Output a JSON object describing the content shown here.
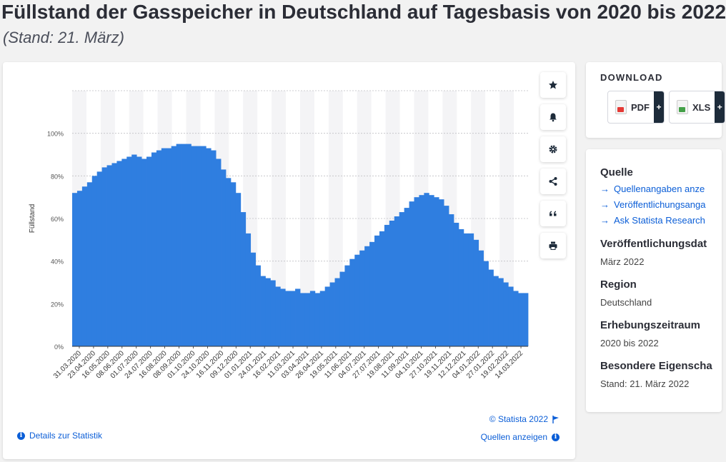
{
  "title": "Füllstand der Gasspeicher in Deutschland auf Tagesbasis von 2020 bis 2022",
  "subtitle": "(Stand: 21. März)",
  "toolbar": {
    "icons": [
      "star-icon",
      "bell-icon",
      "gear-icon",
      "share-icon",
      "quote-icon",
      "print-icon"
    ]
  },
  "footer": {
    "copyright": "© Statista 2022",
    "details_label": "Details zur Statistik",
    "sources_label": "Quellen anzeigen"
  },
  "download": {
    "heading": "DOWNLOAD",
    "pdf_label": "PDF",
    "xls_label": "XLS",
    "plus": "+"
  },
  "info": {
    "source_heading": "Quelle",
    "source_links": [
      "Quellenangaben anze",
      "Veröffentlichungsanga",
      "Ask Statista Research"
    ],
    "published_heading": "Veröffentlichungsdat",
    "published_value": "März 2022",
    "region_heading": "Region",
    "region_value": "Deutschland",
    "period_heading": "Erhebungszeitraum",
    "period_value": "2020 bis 2022",
    "special_heading": "Besondere Eigenscha",
    "special_value": "Stand: 21. März 2022"
  },
  "colors": {
    "bar": "#2f7ee0",
    "link": "#0b5ed7",
    "title": "#2b2d36"
  },
  "chart_data": {
    "type": "bar",
    "ylabel": "Füllstand",
    "ylim": [
      0,
      120
    ],
    "yticks": [
      "0%",
      "20%",
      "40%",
      "60%",
      "80%",
      "100%"
    ],
    "ytick_values": [
      0,
      20,
      40,
      60,
      80,
      100
    ],
    "xtick_labels": [
      "31.03.2020",
      "23.04.2020",
      "16.05.2020",
      "08.06.2020",
      "01.07.2020",
      "24.07.2020",
      "16.08.2020",
      "08.09.2020",
      "01.10.2020",
      "24.10.2020",
      "16.11.2020",
      "09.12.2020",
      "01.01.2021",
      "24.01.2021",
      "16.02.2021",
      "11.03.2021",
      "03.04.2021",
      "26.04.2021",
      "19.05.2021",
      "11.06.2021",
      "04.07.2021",
      "27.07.2021",
      "19.08.2021",
      "11.09.2021",
      "04.10.2021",
      "27.10.2021",
      "19.11.2021",
      "12.12.2021",
      "04.01.2022",
      "27.01.2022",
      "19.02.2022",
      "14.03.2022"
    ],
    "grid": true,
    "series": [
      {
        "values": [
          72,
          73,
          75,
          77,
          80,
          82,
          84,
          85,
          86,
          87,
          88,
          89,
          90,
          89,
          88,
          89,
          91,
          92,
          93,
          93,
          94,
          95,
          95,
          95,
          94,
          94,
          94,
          93,
          92,
          88,
          83,
          79,
          77,
          72,
          63,
          53,
          44,
          38,
          33,
          32,
          31,
          28,
          27,
          26,
          26,
          27,
          25,
          25,
          26,
          25,
          26,
          28,
          30,
          32,
          35,
          38,
          41,
          43,
          45,
          47,
          49,
          52,
          54,
          57,
          59,
          61,
          63,
          65,
          68,
          70,
          71,
          72,
          71,
          70,
          69,
          66,
          62,
          58,
          55,
          53,
          53,
          50,
          45,
          40,
          36,
          33,
          32,
          30,
          28,
          26,
          25,
          25
        ]
      }
    ]
  }
}
